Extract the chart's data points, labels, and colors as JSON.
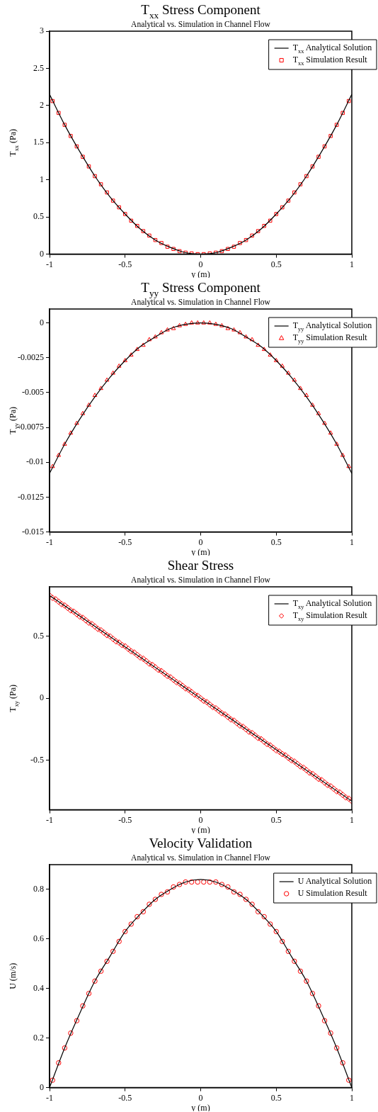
{
  "chart_data": [
    {
      "type": "line",
      "title": "T$_{xx}$ Stress Component",
      "subtitle": "Analytical vs. Simulation in Channel Flow",
      "xlabel": "y (m)",
      "ylabel": "T$_{xx}$ (Pa)",
      "xlim": [
        -1,
        1
      ],
      "xticks": [
        -1,
        -0.5,
        0,
        0.5,
        1
      ],
      "ylim": [
        0,
        3
      ],
      "yticks": [
        0,
        0.5,
        1,
        1.5,
        2,
        2.5,
        3
      ],
      "legend": "top right",
      "series": [
        {
          "name": "T$_{xx}$ Analytical Solution",
          "type": "line",
          "color": "#000000",
          "marker": "none",
          "x": [
            -1,
            -0.9,
            -0.8,
            -0.7,
            -0.6,
            -0.5,
            -0.4,
            -0.3,
            -0.2,
            -0.1,
            0,
            0.1,
            0.2,
            0.3,
            0.4,
            0.5,
            0.6,
            0.7,
            0.8,
            0.9,
            1
          ],
          "values": [
            2.15,
            1.74,
            1.38,
            1.05,
            0.77,
            0.54,
            0.34,
            0.19,
            0.09,
            0.02,
            0,
            0.02,
            0.09,
            0.19,
            0.34,
            0.54,
            0.77,
            1.05,
            1.38,
            1.74,
            2.15
          ]
        },
        {
          "name": "T$_{xx}$ Simulation Result",
          "type": "scatter",
          "color": "#ff0000",
          "marker": "square",
          "x": [
            -0.98,
            -0.94,
            -0.9,
            -0.86,
            -0.82,
            -0.78,
            -0.74,
            -0.7,
            -0.66,
            -0.62,
            -0.58,
            -0.54,
            -0.5,
            -0.46,
            -0.42,
            -0.38,
            -0.34,
            -0.3,
            -0.26,
            -0.22,
            -0.18,
            -0.14,
            -0.1,
            -0.06,
            -0.02,
            0.02,
            0.06,
            0.1,
            0.14,
            0.18,
            0.22,
            0.26,
            0.3,
            0.34,
            0.38,
            0.42,
            0.46,
            0.5,
            0.54,
            0.58,
            0.62,
            0.66,
            0.7,
            0.74,
            0.78,
            0.82,
            0.86,
            0.9,
            0.94,
            0.98
          ],
          "values": [
            2.06,
            1.9,
            1.74,
            1.59,
            1.45,
            1.31,
            1.18,
            1.05,
            0.94,
            0.83,
            0.72,
            0.63,
            0.54,
            0.45,
            0.38,
            0.31,
            0.25,
            0.19,
            0.15,
            0.1,
            0.07,
            0.04,
            0.02,
            0.01,
            0,
            0,
            0.01,
            0.02,
            0.04,
            0.07,
            0.1,
            0.15,
            0.19,
            0.25,
            0.31,
            0.38,
            0.45,
            0.54,
            0.63,
            0.72,
            0.83,
            0.94,
            1.05,
            1.18,
            1.31,
            1.45,
            1.59,
            1.74,
            1.9,
            2.06
          ]
        }
      ]
    },
    {
      "type": "line",
      "title": "T$_{yy}$ Stress Component",
      "subtitle": "Analytical vs. Simulation in Channel Flow",
      "xlabel": "y (m)",
      "ylabel": "T$_{yy}$ (Pa)",
      "xlim": [
        -1,
        1
      ],
      "xticks": [
        -1,
        -0.5,
        0,
        0.5,
        1
      ],
      "ylim": [
        -0.015,
        0.001
      ],
      "yticks": [
        -0.015,
        -0.0125,
        -0.01,
        -0.0075,
        -0.005,
        -0.0025,
        0
      ],
      "legend": "top right",
      "series": [
        {
          "name": "T$_{yy}$ Analytical Solution",
          "type": "line",
          "color": "#000000",
          "marker": "none",
          "x": [
            -1,
            -0.9,
            -0.8,
            -0.7,
            -0.6,
            -0.5,
            -0.4,
            -0.3,
            -0.2,
            -0.1,
            0,
            0.1,
            0.2,
            0.3,
            0.4,
            0.5,
            0.6,
            0.7,
            0.8,
            0.9,
            1
          ],
          "values": [
            -0.0108,
            -0.0087,
            -0.0069,
            -0.0053,
            -0.0039,
            -0.0027,
            -0.0017,
            -0.001,
            -0.0004,
            -0.0001,
            0,
            -0.0001,
            -0.0004,
            -0.001,
            -0.0017,
            -0.0027,
            -0.0039,
            -0.0053,
            -0.0069,
            -0.0087,
            -0.0108
          ]
        },
        {
          "name": "T$_{yy}$ Simulation Result",
          "type": "scatter",
          "color": "#ff0000",
          "marker": "triangle",
          "x": [
            -0.98,
            -0.94,
            -0.9,
            -0.86,
            -0.82,
            -0.78,
            -0.74,
            -0.7,
            -0.66,
            -0.62,
            -0.58,
            -0.54,
            -0.5,
            -0.46,
            -0.42,
            -0.38,
            -0.34,
            -0.3,
            -0.26,
            -0.22,
            -0.18,
            -0.14,
            -0.1,
            -0.06,
            -0.02,
            0.02,
            0.06,
            0.1,
            0.14,
            0.18,
            0.22,
            0.26,
            0.3,
            0.34,
            0.38,
            0.42,
            0.46,
            0.5,
            0.54,
            0.58,
            0.62,
            0.66,
            0.7,
            0.74,
            0.78,
            0.82,
            0.86,
            0.9,
            0.94,
            0.98
          ],
          "values": [
            -0.0103,
            -0.0095,
            -0.0087,
            -0.0079,
            -0.0072,
            -0.0065,
            -0.0059,
            -0.0052,
            -0.0047,
            -0.0041,
            -0.0036,
            -0.0031,
            -0.0027,
            -0.0023,
            -0.0019,
            -0.0016,
            -0.0012,
            -0.001,
            -0.0007,
            -0.0005,
            -0.0004,
            -0.0002,
            -0.0001,
            0,
            0,
            0,
            0,
            -0.0001,
            -0.0002,
            -0.0004,
            -0.0005,
            -0.0007,
            -0.001,
            -0.0012,
            -0.0016,
            -0.0019,
            -0.0023,
            -0.0027,
            -0.0031,
            -0.0036,
            -0.0041,
            -0.0047,
            -0.0052,
            -0.0059,
            -0.0065,
            -0.0072,
            -0.0079,
            -0.0087,
            -0.0095,
            -0.0103
          ]
        }
      ]
    },
    {
      "type": "line",
      "title": "Shear Stress",
      "subtitle": "Analytical vs. Simulation in Channel Flow",
      "xlabel": "y (m)",
      "ylabel": "T$_{xy}$ (Pa)",
      "xlim": [
        -1,
        1
      ],
      "xticks": [
        -1,
        -0.5,
        0,
        0.5,
        1
      ],
      "ylim": [
        -0.9,
        0.9
      ],
      "yticks": [
        -0.5,
        0,
        0.5
      ],
      "legend": "top right",
      "series": [
        {
          "name": "T$_{xy}$ Analytical Solution",
          "type": "line",
          "color": "#000000",
          "marker": "none",
          "x": [
            -1,
            1
          ],
          "values": [
            0.83,
            -0.83
          ]
        },
        {
          "name": "T$_{xy}$ Simulation Result",
          "type": "scatter",
          "color": "#ff0000",
          "marker": "diamond",
          "x": [
            -1,
            -0.98,
            -0.96,
            -0.94,
            -0.92,
            -0.9,
            -0.88,
            -0.86,
            -0.84,
            -0.82,
            -0.8,
            -0.78,
            -0.76,
            -0.74,
            -0.72,
            -0.7,
            -0.68,
            -0.66,
            -0.64,
            -0.62,
            -0.6,
            -0.58,
            -0.56,
            -0.54,
            -0.52,
            -0.5,
            -0.48,
            -0.46,
            -0.44,
            -0.42,
            -0.4,
            -0.38,
            -0.36,
            -0.34,
            -0.32,
            -0.3,
            -0.28,
            -0.26,
            -0.24,
            -0.22,
            -0.2,
            -0.18,
            -0.16,
            -0.14,
            -0.12,
            -0.1,
            -0.08,
            -0.06,
            -0.04,
            -0.02,
            0,
            0.02,
            0.04,
            0.06,
            0.08,
            0.1,
            0.12,
            0.14,
            0.16,
            0.18,
            0.2,
            0.22,
            0.24,
            0.26,
            0.28,
            0.3,
            0.32,
            0.34,
            0.36,
            0.38,
            0.4,
            0.42,
            0.44,
            0.46,
            0.48,
            0.5,
            0.52,
            0.54,
            0.56,
            0.58,
            0.6,
            0.62,
            0.64,
            0.66,
            0.68,
            0.7,
            0.72,
            0.74,
            0.76,
            0.78,
            0.8,
            0.82,
            0.84,
            0.86,
            0.88,
            0.9,
            0.92,
            0.94,
            0.96,
            0.98,
            1
          ],
          "values": [
            0.83,
            0.81,
            0.8,
            0.78,
            0.76,
            0.75,
            0.73,
            0.71,
            0.7,
            0.68,
            0.66,
            0.65,
            0.63,
            0.61,
            0.6,
            0.58,
            0.56,
            0.55,
            0.53,
            0.51,
            0.5,
            0.48,
            0.46,
            0.45,
            0.43,
            0.42,
            0.4,
            0.38,
            0.37,
            0.35,
            0.33,
            0.32,
            0.3,
            0.28,
            0.27,
            0.25,
            0.23,
            0.22,
            0.2,
            0.18,
            0.17,
            0.15,
            0.13,
            0.12,
            0.1,
            0.08,
            0.07,
            0.05,
            0.03,
            0.02,
            0,
            -0.02,
            -0.03,
            -0.05,
            -0.07,
            -0.08,
            -0.1,
            -0.12,
            -0.13,
            -0.15,
            -0.17,
            -0.18,
            -0.2,
            -0.22,
            -0.23,
            -0.25,
            -0.27,
            -0.28,
            -0.3,
            -0.32,
            -0.33,
            -0.35,
            -0.37,
            -0.38,
            -0.4,
            -0.42,
            -0.43,
            -0.45,
            -0.46,
            -0.48,
            -0.5,
            -0.51,
            -0.53,
            -0.55,
            -0.56,
            -0.58,
            -0.6,
            -0.61,
            -0.63,
            -0.65,
            -0.66,
            -0.68,
            -0.7,
            -0.71,
            -0.73,
            -0.75,
            -0.76,
            -0.78,
            -0.8,
            -0.81,
            -0.83
          ]
        }
      ]
    },
    {
      "type": "line",
      "title": "Velocity Validation",
      "subtitle": "Analytical vs. Simulation in Channel Flow",
      "xlabel": "y (m)",
      "ylabel": "U (m/s)",
      "xlim": [
        -1,
        1
      ],
      "xticks": [
        -1,
        -0.5,
        0,
        0.5,
        1
      ],
      "ylim": [
        0,
        0.9
      ],
      "yticks": [
        0,
        0.2,
        0.4,
        0.6,
        0.8
      ],
      "legend": "top right",
      "series": [
        {
          "name": "U Analytical Solution",
          "type": "line",
          "color": "#000000",
          "marker": "none",
          "x": [
            -1,
            -0.9,
            -0.8,
            -0.7,
            -0.6,
            -0.5,
            -0.4,
            -0.3,
            -0.2,
            -0.1,
            0,
            0.1,
            0.2,
            0.3,
            0.4,
            0.5,
            0.6,
            0.7,
            0.8,
            0.9,
            1
          ],
          "values": [
            0,
            0.16,
            0.3,
            0.43,
            0.53,
            0.63,
            0.7,
            0.76,
            0.8,
            0.83,
            0.84,
            0.83,
            0.8,
            0.76,
            0.7,
            0.63,
            0.53,
            0.43,
            0.3,
            0.16,
            0
          ]
        },
        {
          "name": "U Simulation Result",
          "type": "scatter",
          "color": "#ff0000",
          "marker": "circle",
          "x": [
            -0.98,
            -0.94,
            -0.9,
            -0.86,
            -0.82,
            -0.78,
            -0.74,
            -0.7,
            -0.66,
            -0.62,
            -0.58,
            -0.54,
            -0.5,
            -0.46,
            -0.42,
            -0.38,
            -0.34,
            -0.3,
            -0.26,
            -0.22,
            -0.18,
            -0.14,
            -0.1,
            -0.06,
            -0.02,
            0.02,
            0.06,
            0.1,
            0.14,
            0.18,
            0.22,
            0.26,
            0.3,
            0.34,
            0.38,
            0.42,
            0.46,
            0.5,
            0.54,
            0.58,
            0.62,
            0.66,
            0.7,
            0.74,
            0.78,
            0.82,
            0.86,
            0.9,
            0.94,
            0.98
          ],
          "values": [
            0.03,
            0.1,
            0.16,
            0.22,
            0.27,
            0.33,
            0.38,
            0.43,
            0.47,
            0.51,
            0.55,
            0.59,
            0.63,
            0.66,
            0.69,
            0.71,
            0.74,
            0.76,
            0.78,
            0.79,
            0.81,
            0.82,
            0.83,
            0.83,
            0.83,
            0.83,
            0.83,
            0.83,
            0.82,
            0.81,
            0.79,
            0.78,
            0.76,
            0.74,
            0.71,
            0.69,
            0.66,
            0.63,
            0.59,
            0.55,
            0.51,
            0.47,
            0.43,
            0.38,
            0.33,
            0.27,
            0.22,
            0.16,
            0.1,
            0.03
          ]
        }
      ]
    }
  ]
}
